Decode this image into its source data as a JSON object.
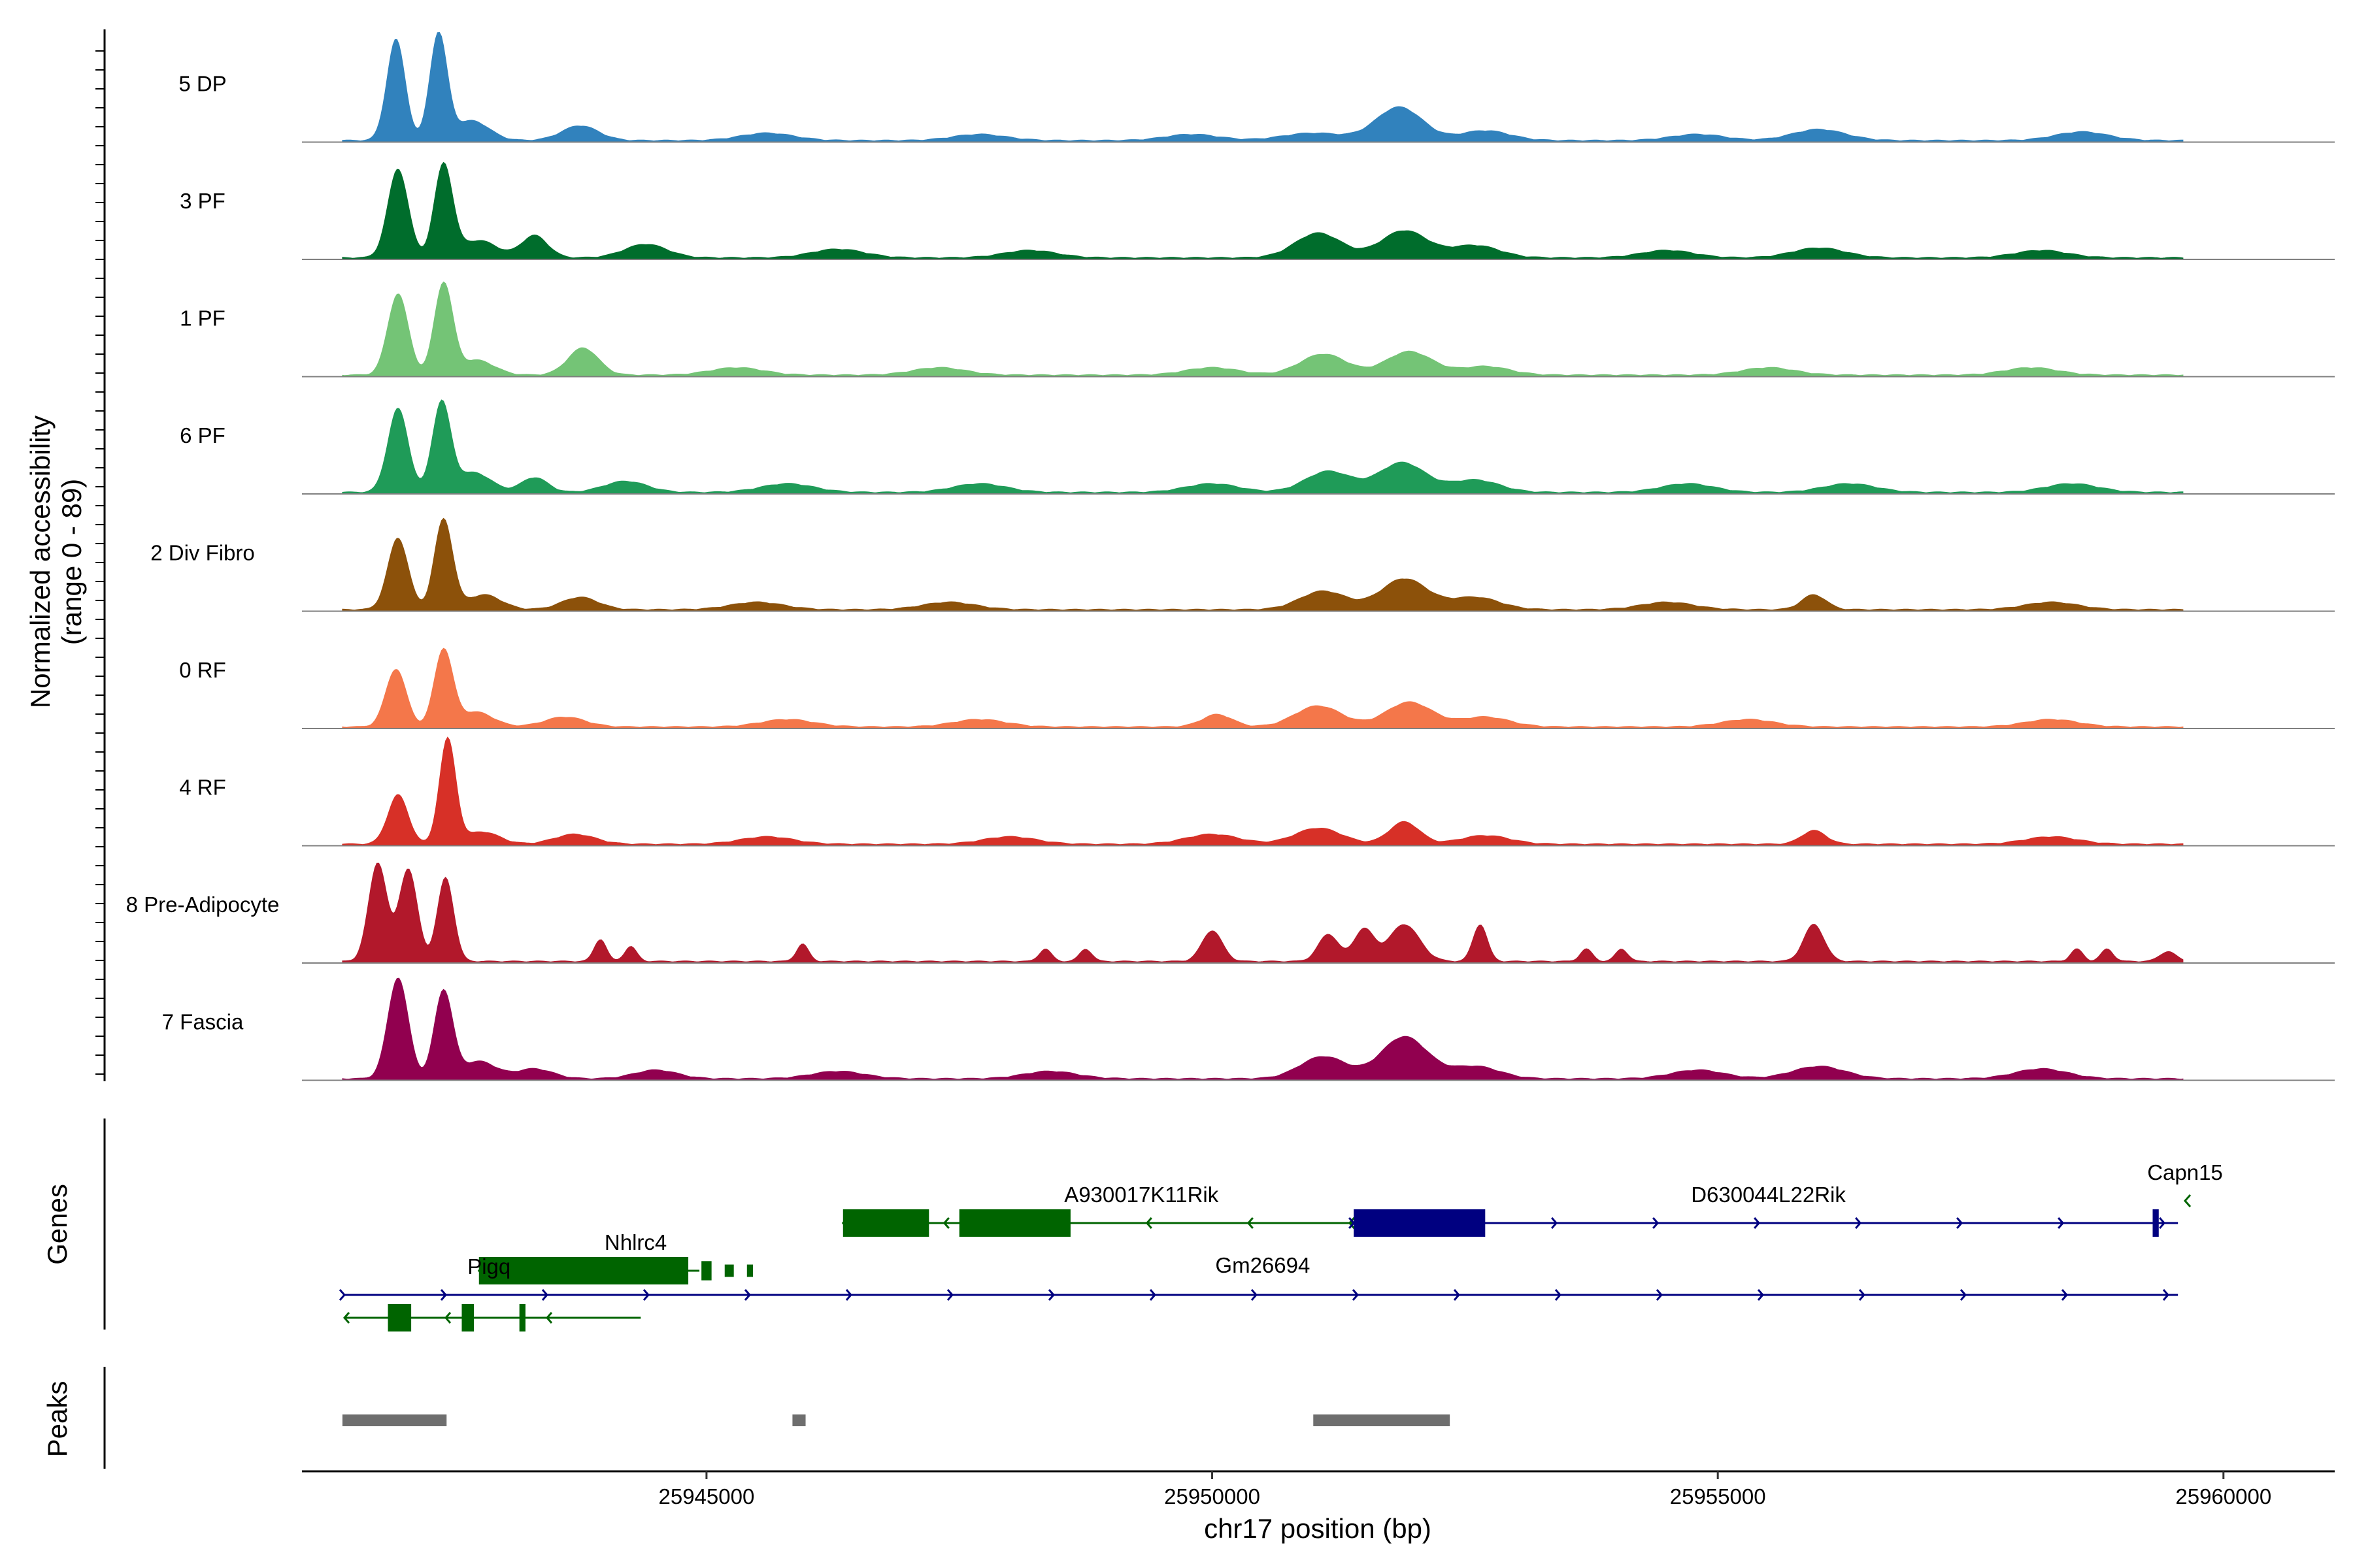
{
  "chart_data": {
    "type": "area",
    "title": "",
    "chromosome": "chr17",
    "xlabel": "chr17 position (bp)",
    "ylabel_line1": "Normalized accessibility",
    "ylabel_line2": "(range 0 - 89)",
    "ylim": [
      0,
      89
    ],
    "xlim": [
      25941000,
      25961100
    ],
    "x_ticks": [
      25945000,
      25950000,
      25955000,
      25960000
    ],
    "x_tick_labels": [
      "25945000",
      "25950000",
      "25955000",
      "25960000"
    ],
    "gene_panel_title": "Genes",
    "peak_panel_title": "Peaks",
    "series": [
      {
        "name": "5 DP",
        "color": "#3182bd",
        "peaks": [
          [
            25941930,
            82,
            90
          ],
          [
            25942350,
            86,
            85
          ],
          [
            25942680,
            16,
            170
          ],
          [
            25943750,
            12,
            180
          ],
          [
            25945600,
            6,
            260
          ],
          [
            25947700,
            5,
            260
          ],
          [
            25949800,
            5,
            260
          ],
          [
            25951000,
            6,
            300
          ],
          [
            25951850,
            27,
            230
          ],
          [
            25952700,
            8,
            240
          ],
          [
            25954800,
            5,
            260
          ],
          [
            25956000,
            9,
            260
          ],
          [
            25958600,
            7,
            260
          ]
        ]
      },
      {
        "name": "3 PF",
        "color": "#006d2c",
        "peaks": [
          [
            25941950,
            72,
            100
          ],
          [
            25942400,
            75,
            90
          ],
          [
            25942750,
            14,
            180
          ],
          [
            25943300,
            18,
            130
          ],
          [
            25944400,
            11,
            210
          ],
          [
            25946300,
            7,
            260
          ],
          [
            25948200,
            6,
            260
          ],
          [
            25951050,
            20,
            230
          ],
          [
            25951900,
            22,
            230
          ],
          [
            25952600,
            10,
            240
          ],
          [
            25954500,
            6,
            260
          ],
          [
            25956000,
            8,
            260
          ],
          [
            25958200,
            6,
            260
          ]
        ]
      },
      {
        "name": "1 PF",
        "color": "#74c476",
        "peaks": [
          [
            25941950,
            66,
            100
          ],
          [
            25942400,
            74,
            90
          ],
          [
            25942730,
            12,
            170
          ],
          [
            25943780,
            22,
            150
          ],
          [
            25945300,
            6,
            260
          ],
          [
            25947300,
            6,
            260
          ],
          [
            25950000,
            6,
            260
          ],
          [
            25951100,
            17,
            230
          ],
          [
            25951950,
            19,
            230
          ],
          [
            25952700,
            7,
            240
          ],
          [
            25955500,
            6,
            260
          ],
          [
            25958100,
            6,
            260
          ]
        ]
      },
      {
        "name": "6 PF",
        "color": "#1f9b58",
        "peaks": [
          [
            25941950,
            68,
            100
          ],
          [
            25942380,
            72,
            90
          ],
          [
            25942700,
            16,
            170
          ],
          [
            25943300,
            12,
            130
          ],
          [
            25944200,
            9,
            210
          ],
          [
            25945800,
            7,
            260
          ],
          [
            25947700,
            7,
            260
          ],
          [
            25950000,
            7,
            260
          ],
          [
            25951150,
            17,
            230
          ],
          [
            25951880,
            24,
            230
          ],
          [
            25952600,
            10,
            240
          ],
          [
            25954700,
            7,
            260
          ],
          [
            25956300,
            7,
            260
          ],
          [
            25958500,
            7,
            260
          ]
        ]
      },
      {
        "name": "2 Div Fibro",
        "color": "#8c510a",
        "peaks": [
          [
            25941950,
            58,
            100
          ],
          [
            25942400,
            73,
            90
          ],
          [
            25942800,
            12,
            170
          ],
          [
            25943750,
            10,
            180
          ],
          [
            25945500,
            6,
            260
          ],
          [
            25947400,
            6,
            260
          ],
          [
            25951100,
            15,
            230
          ],
          [
            25951900,
            25,
            230
          ],
          [
            25952600,
            10,
            240
          ],
          [
            25954500,
            6,
            260
          ],
          [
            25955950,
            12,
            120
          ],
          [
            25958300,
            6,
            260
          ]
        ]
      },
      {
        "name": "0 RF",
        "color": "#f4774a",
        "peaks": [
          [
            25941930,
            47,
            100
          ],
          [
            25942400,
            62,
            90
          ],
          [
            25942720,
            12,
            170
          ],
          [
            25943600,
            8,
            200
          ],
          [
            25945800,
            6,
            260
          ],
          [
            25947700,
            6,
            260
          ],
          [
            25950050,
            10,
            150
          ],
          [
            25951050,
            17,
            230
          ],
          [
            25951950,
            20,
            230
          ],
          [
            25952700,
            8,
            240
          ],
          [
            25955300,
            6,
            260
          ],
          [
            25958300,
            6,
            260
          ]
        ]
      },
      {
        "name": "4 RF",
        "color": "#d73027",
        "peaks": [
          [
            25941950,
            40,
            100
          ],
          [
            25942440,
            85,
            80
          ],
          [
            25942780,
            10,
            170
          ],
          [
            25943700,
            8,
            200
          ],
          [
            25945600,
            6,
            260
          ],
          [
            25948000,
            6,
            260
          ],
          [
            25950000,
            8,
            260
          ],
          [
            25951050,
            13,
            230
          ],
          [
            25951900,
            18,
            150
          ],
          [
            25952700,
            7,
            240
          ],
          [
            25955950,
            11,
            120
          ],
          [
            25958300,
            6,
            260
          ]
        ]
      },
      {
        "name": "8 Pre-Adipocyte",
        "color": "#b2182b",
        "peaks": [
          [
            25941750,
            80,
            90
          ],
          [
            25942050,
            75,
            90
          ],
          [
            25942420,
            68,
            80
          ],
          [
            25943950,
            18,
            60
          ],
          [
            25944250,
            12,
            60
          ],
          [
            25945950,
            14,
            60
          ],
          [
            25948350,
            10,
            60
          ],
          [
            25948750,
            10,
            60
          ],
          [
            25950000,
            25,
            100
          ],
          [
            25951150,
            22,
            100
          ],
          [
            25951500,
            26,
            100
          ],
          [
            25951900,
            30,
            150
          ],
          [
            25952650,
            30,
            70
          ],
          [
            25953700,
            10,
            60
          ],
          [
            25954050,
            10,
            60
          ],
          [
            25955950,
            30,
            100
          ],
          [
            25958550,
            10,
            60
          ],
          [
            25958850,
            10,
            60
          ],
          [
            25959450,
            8,
            80
          ]
        ]
      },
      {
        "name": "7 Fascia",
        "color": "#91004f",
        "peaks": [
          [
            25941950,
            82,
            100
          ],
          [
            25942400,
            71,
            90
          ],
          [
            25942750,
            14,
            170
          ],
          [
            25943300,
            8,
            180
          ],
          [
            25944500,
            7,
            210
          ],
          [
            25946300,
            6,
            260
          ],
          [
            25948400,
            6,
            260
          ],
          [
            25951100,
            18,
            230
          ],
          [
            25951900,
            34,
            230
          ],
          [
            25952600,
            10,
            240
          ],
          [
            25954800,
            7,
            260
          ],
          [
            25956000,
            10,
            260
          ],
          [
            25958200,
            8,
            260
          ]
        ]
      }
    ],
    "genes": [
      {
        "name": "Nhlrc4",
        "strand": "-",
        "row": 1,
        "start": 25942750,
        "end": 25944930,
        "exons": [
          [
            25942750,
            25944820,
            1.0
          ],
          [
            25944950,
            25945050,
            0.7
          ],
          [
            25945180,
            25945270,
            0.45
          ],
          [
            25945400,
            25945460,
            0.45
          ]
        ],
        "label_x": 25944300,
        "label_pos": "above"
      },
      {
        "name": "A930017K11Rik",
        "strand": "-",
        "row": 0,
        "start": 25946350,
        "end": 25952130,
        "exons": [
          [
            25946350,
            25947200,
            1.0
          ],
          [
            25947500,
            25948600,
            1.0
          ],
          [
            25951950,
            25952520,
            1.0
          ]
        ],
        "label_x": 25949300,
        "label_pos": "above"
      },
      {
        "name": "Gm26694",
        "strand": "-",
        "row": 0,
        "start": 25951950,
        "end": 25952520,
        "exons": [],
        "label_x": 25950500,
        "label_pos": "below"
      },
      {
        "name": "D630044L22Rik",
        "strand": "+",
        "row": 0,
        "start": 25951400,
        "end": 25959550,
        "exons": [
          [
            25951400,
            25952700,
            1.0
          ],
          [
            25959300,
            25959360,
            1.0
          ]
        ],
        "label_x": 25955500,
        "label_pos": "above"
      },
      {
        "name": "Capn15",
        "strand": "-",
        "row": -1,
        "start": 25959550,
        "end": 25959620,
        "exons": [],
        "label_x": 25959620,
        "label_pos": "above"
      },
      {
        "name": "Pigq",
        "strand": "+",
        "row": 2,
        "start": 25941420,
        "end": 25959550,
        "exons": [],
        "label_x": 25942850,
        "label_pos": "above"
      },
      {
        "name": "Pigq",
        "strand": "-",
        "row": 3,
        "start": 25941420,
        "end": 25944350,
        "exons": [
          [
            25941850,
            25942080,
            1.0
          ],
          [
            25942580,
            25942700,
            1.0
          ],
          [
            25943150,
            25943210,
            1.0
          ]
        ],
        "label_x": null,
        "label_pos": "none"
      }
    ],
    "peak_regions": [
      [
        25941400,
        25942430
      ],
      [
        25945850,
        25945980
      ],
      [
        25951000,
        25952350
      ]
    ]
  }
}
